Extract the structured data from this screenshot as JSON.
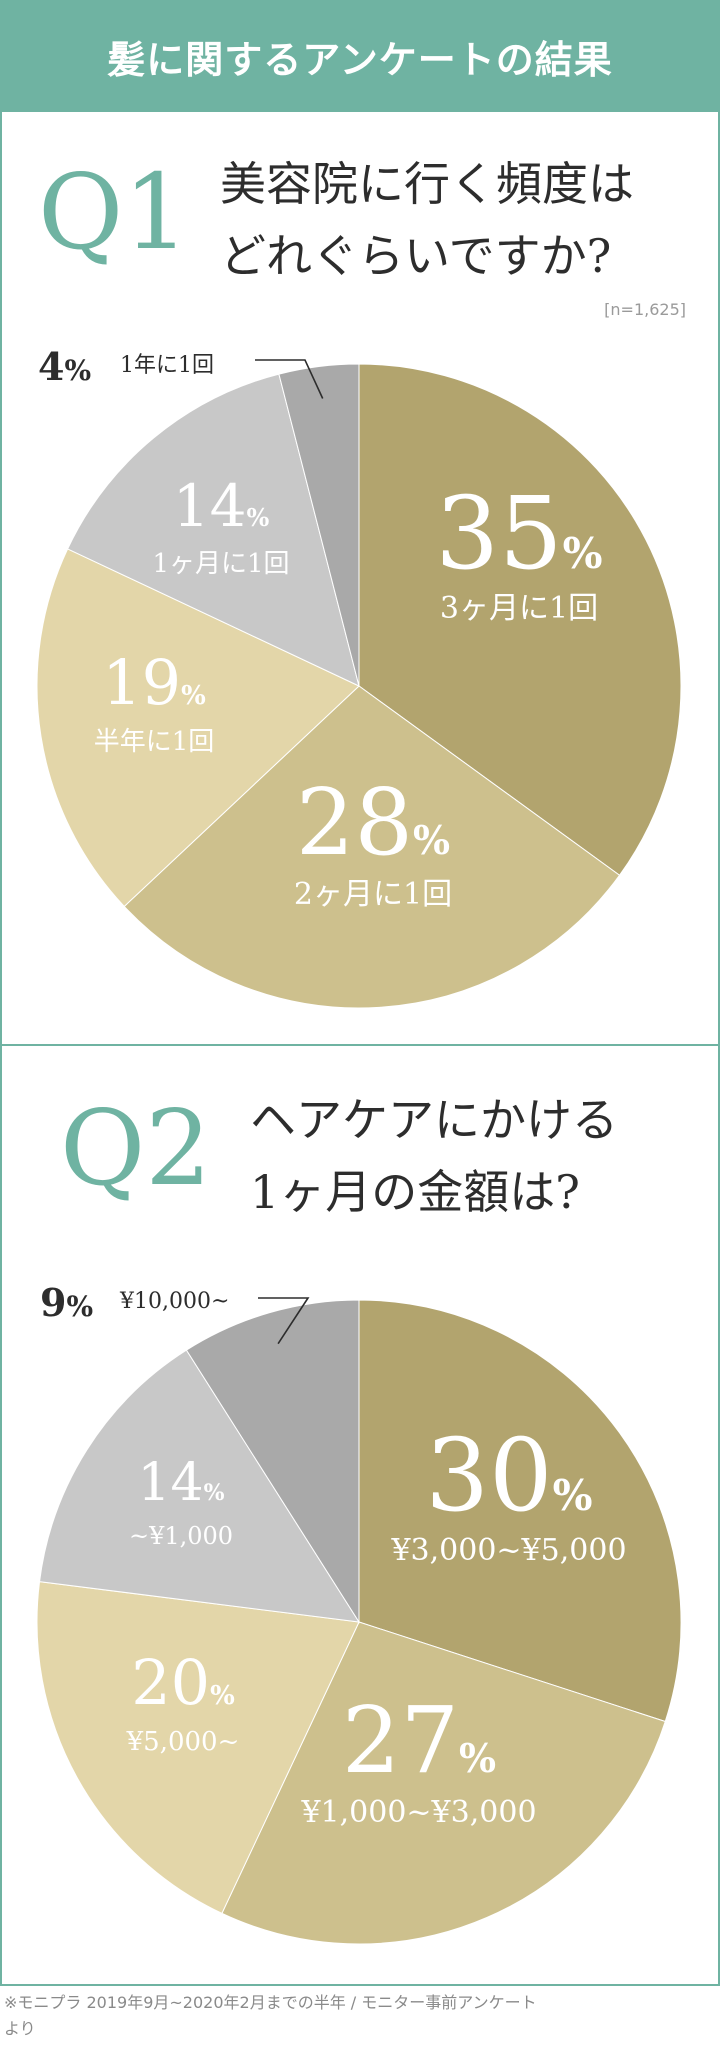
{
  "header": {
    "title": "髪に関するアンケートの結果"
  },
  "q1": {
    "number": "Q1",
    "question_lines": [
      "美容院に行く頻度は",
      "どれぐらいですか?"
    ],
    "sample": "[n=1,625]"
  },
  "q2": {
    "number": "Q2",
    "question_lines": [
      "ヘアケアにかける",
      "1ヶ月の金額は?"
    ]
  },
  "colors": {
    "accent": "#6fb3a2",
    "slice1": "#b2a46e",
    "slice2": "#cdc08d",
    "slice3": "#e3d6a9",
    "slice4": "#c8c8c8",
    "slice5": "#a9a9a9"
  },
  "chart_data": [
    {
      "type": "pie",
      "unit": "%",
      "slices": [
        {
          "label": "3ヶ月に1回",
          "value": 35
        },
        {
          "label": "2ヶ月に1回",
          "value": 28
        },
        {
          "label": "半年に1回",
          "value": 19
        },
        {
          "label": "1ヶ月に1回",
          "value": 14
        },
        {
          "label": "1年に1回",
          "value": 4
        }
      ]
    },
    {
      "type": "pie",
      "unit": "%",
      "slices": [
        {
          "label": "¥3,000~¥5,000",
          "value": 30
        },
        {
          "label": "¥1,000~¥3,000",
          "value": 27
        },
        {
          "label": "¥5,000~",
          "value": 20
        },
        {
          "label": "~¥1,000",
          "value": 14
        },
        {
          "label": "¥10,000~",
          "value": 9
        }
      ]
    }
  ],
  "footnote": {
    "lines": [
      "※モニプラ 2019年9月~2020年2月までの半年 / モニター事前アンケート",
      "より"
    ]
  }
}
